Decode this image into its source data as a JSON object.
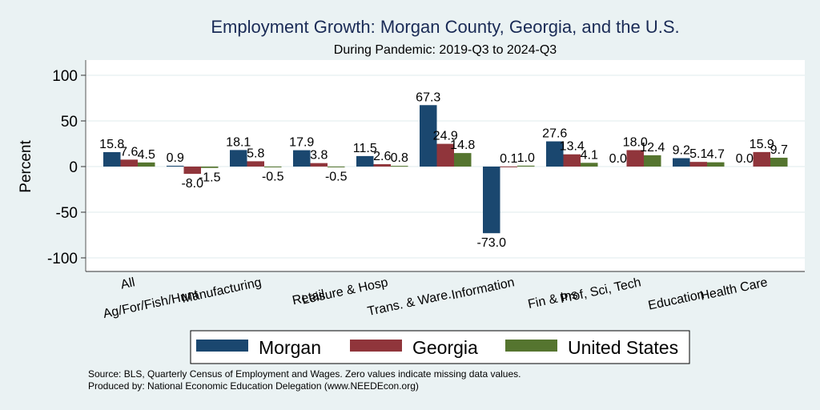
{
  "chart_data": {
    "type": "bar",
    "title": "Employment Growth: Morgan County, Georgia, and the U.S.",
    "subtitle": "During Pandemic: 2019-Q3 to 2024-Q3",
    "xlabel": "",
    "ylabel": "Percent",
    "ylim": [
      -115,
      117
    ],
    "yticks": [
      100,
      50,
      0,
      -50,
      -100
    ],
    "ytick_labels": [
      "100",
      "50",
      "0",
      "-50",
      "-100"
    ],
    "grid": true,
    "legend_position": "bottom",
    "categories": [
      "All",
      "Ag/For/Fish/Hunt",
      "Manufacturing",
      "Retail",
      "Leisure & Hosp",
      "Trans. & Ware.",
      "Information",
      "Fin & Ins",
      "Prof, Sci, Tech",
      "Education",
      "Health Care"
    ],
    "series": [
      {
        "name": "Morgan",
        "color": "#1a476f",
        "values": [
          15.8,
          0.9,
          18.1,
          17.9,
          11.5,
          67.3,
          -73.0,
          27.6,
          0.0,
          9.2,
          0.0
        ],
        "labels": [
          "15.8",
          "0.9",
          "18.1",
          "17.9",
          "11.5",
          "67.3",
          "-73.0",
          "27.6",
          "0.0",
          "9.2",
          "0.0"
        ]
      },
      {
        "name": "Georgia",
        "color": "#90353b",
        "values": [
          7.6,
          -8.0,
          5.8,
          3.8,
          2.6,
          24.9,
          0.1,
          13.4,
          18.0,
          5.1,
          15.9
        ],
        "labels": [
          "7.6",
          "-8.0",
          "5.8",
          "3.8",
          "2.6",
          "24.9",
          "0.1",
          "13.4",
          "18.0",
          "5.1",
          "15.9"
        ]
      },
      {
        "name": "United States",
        "color": "#55752f",
        "values": [
          4.5,
          -1.5,
          -0.5,
          -0.5,
          0.8,
          14.8,
          1.0,
          4.1,
          12.4,
          4.7,
          9.7
        ],
        "labels": [
          "4.5",
          "-1.5",
          "-0.5",
          "-0.5",
          "0.8",
          "14.8",
          "1.0",
          "4.1",
          "12.4",
          "4.7",
          "9.7"
        ]
      }
    ],
    "notes": [
      "Source: BLS, Quarterly Census of Employment and Wages. Zero values indicate missing data values.",
      "Produced by: National Economic Education Delegation (www.NEEDEcon.org)"
    ]
  }
}
